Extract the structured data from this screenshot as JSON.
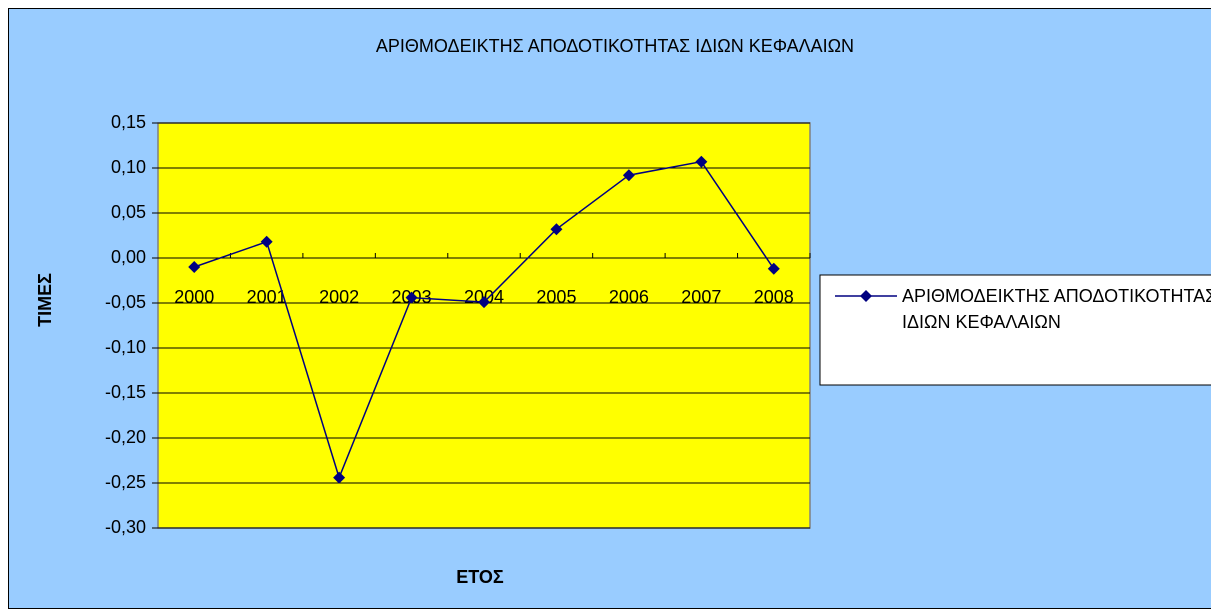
{
  "chart_data": {
    "type": "line",
    "title": "ΑΡΙΘΜΟΔΕΙΚΤΗΣ  ΑΠΟΔΟΤΙΚΟΤΗΤΑΣ ΙΔΙΩΝ ΚΕΦΑΛΑΙΩΝ",
    "x_label": "ΕΤΟΣ",
    "y_label": "ΤΙΜΕΣ",
    "categories": [
      "2000",
      "2001",
      "2002",
      "2003",
      "2004",
      "2005",
      "2006",
      "2007",
      "2008"
    ],
    "series": [
      {
        "name": "ΑΡΙΘΜΟΔΕΙΚΤΗΣ ΑΠΟΔΟΤΙΚΟΤΗΤΑΣ ΙΔΙΩΝ ΚΕΦΑΛΑΙΩΝ",
        "color": "#000080",
        "values": [
          -0.01,
          0.018,
          -0.244,
          -0.044,
          -0.049,
          0.032,
          0.092,
          0.107,
          -0.012
        ]
      }
    ],
    "ylim": [
      -0.3,
      0.15
    ],
    "yticks": [
      {
        "value": -0.3,
        "label": "-0,30"
      },
      {
        "value": -0.25,
        "label": "-0,25"
      },
      {
        "value": -0.2,
        "label": "-0,20"
      },
      {
        "value": -0.15,
        "label": "-0,15"
      },
      {
        "value": -0.1,
        "label": "-0,10"
      },
      {
        "value": -0.05,
        "label": "-0,05"
      },
      {
        "value": 0,
        "label": "0,00"
      },
      {
        "value": 0.05,
        "label": "0,05"
      },
      {
        "value": 0.1,
        "label": "0,10"
      },
      {
        "value": 0.15,
        "label": "0,15"
      }
    ],
    "grid": true,
    "legend": "right",
    "plot_color": "#ffff00",
    "background_color": "#99ccff"
  }
}
